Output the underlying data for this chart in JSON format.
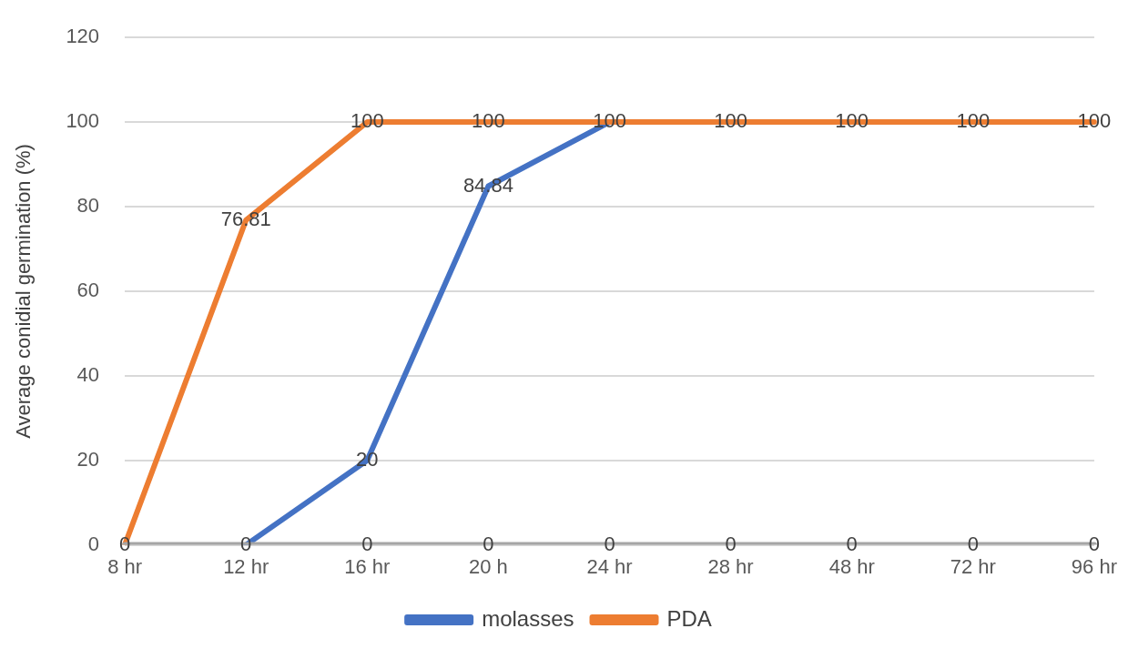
{
  "chart_data": {
    "type": "line",
    "ylabel": "Average conidial germination (%)",
    "categories": [
      "8 hr",
      "12 hr",
      "16 hr",
      "20 h",
      "24 hr",
      "28 hr",
      "48 hr",
      "72 hr",
      "96 hr"
    ],
    "series": [
      {
        "name": "molasses",
        "color": "#4472c4",
        "values": [
          null,
          0,
          20,
          84.84,
          100,
          null,
          null,
          null,
          null
        ],
        "value_labels": [
          null,
          null,
          "20",
          "84.84",
          null,
          null,
          null,
          null,
          null
        ]
      },
      {
        "name": "PDA",
        "color": "#ed7d31",
        "values": [
          0,
          76.81,
          100,
          100,
          100,
          100,
          100,
          100,
          100
        ],
        "value_labels": [
          null,
          "76.81",
          "100",
          "100",
          "100",
          "100",
          "100",
          "100",
          "100"
        ]
      },
      {
        "color": "#a5a5a5",
        "values": [
          0,
          0,
          0,
          0,
          0,
          0,
          0,
          0,
          0
        ],
        "value_labels": [
          "0",
          "0",
          "0",
          "0",
          "0",
          "0",
          "0",
          "0",
          "0"
        ]
      }
    ],
    "ylim": [
      0,
      120
    ],
    "yticks": [
      0,
      20,
      40,
      60,
      80,
      100,
      120
    ],
    "grid": "y",
    "legend": "bottom",
    "marker": "none",
    "line_style": "solid"
  }
}
